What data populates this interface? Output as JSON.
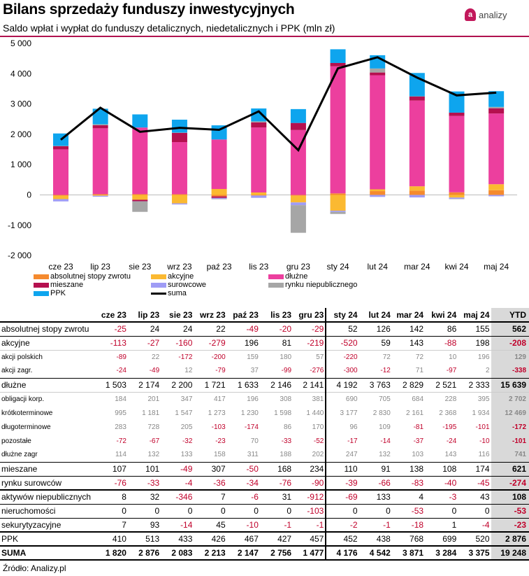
{
  "header": {
    "title": "Bilans sprzedaży funduszy inwestycyjnych",
    "subtitle": "Saldo wpłat i wypłat do funduszy detalicznych, niedetalicznych i PPK (mln zł)",
    "logo_text": "analizy",
    "logo_mark": "a"
  },
  "chart_data": {
    "type": "bar",
    "stacked": true,
    "categories": [
      "cze 23",
      "lip 23",
      "sie 23",
      "wrz 23",
      "paź 23",
      "lis 23",
      "gru 23",
      "sty 24",
      "lut 24",
      "mar 24",
      "kwi 24",
      "maj 24"
    ],
    "ylim": [
      -2000,
      5000
    ],
    "yticks": [
      5000,
      4000,
      3000,
      2000,
      1000,
      0,
      -1000,
      -2000
    ],
    "ytick_labels": [
      "5 000",
      "4 000",
      "3 000",
      "2 000",
      "1 000",
      "0",
      "-1 000",
      "-2 000"
    ],
    "series": [
      {
        "name": "absolutnej stopy zwrotu",
        "color": "#f58a2e",
        "values": [
          -25,
          24,
          24,
          22,
          -49,
          -20,
          -29,
          52,
          126,
          142,
          86,
          155
        ]
      },
      {
        "name": "akcyjne",
        "color": "#fbb931",
        "values": [
          -113,
          -27,
          -160,
          -279,
          196,
          81,
          -219,
          -520,
          59,
          143,
          -88,
          198
        ]
      },
      {
        "name": "dłużne",
        "color": "#ec3f9e",
        "values": [
          1503,
          2174,
          2200,
          1721,
          1633,
          2146,
          2141,
          4192,
          3763,
          2829,
          2521,
          2333
        ]
      },
      {
        "name": "mieszane",
        "color": "#b5104f",
        "values": [
          107,
          101,
          -49,
          307,
          -50,
          168,
          234,
          110,
          91,
          138,
          108,
          174
        ]
      },
      {
        "name": "surowcowe",
        "color": "#9f9cf5",
        "values": [
          -76,
          -33,
          -4,
          -36,
          -34,
          -76,
          -90,
          -39,
          -66,
          -83,
          -40,
          -45
        ]
      },
      {
        "name": "rynku niepublicznego",
        "color": "#a6a6a6",
        "values": [
          8,
          32,
          -346,
          7,
          -6,
          31,
          -912,
          -69,
          133,
          4,
          -3,
          43
        ]
      },
      {
        "name": "PPK",
        "color": "#0ea5ee",
        "values": [
          410,
          513,
          433,
          426,
          467,
          427,
          457,
          452,
          438,
          768,
          699,
          520
        ]
      }
    ],
    "line": {
      "name": "suma",
      "color": "#000000",
      "values": [
        1820,
        2876,
        2083,
        2213,
        2147,
        2756,
        1477,
        4176,
        4542,
        3871,
        3284,
        3375
      ]
    },
    "legend_placement": "bottom"
  },
  "table": {
    "headers": [
      "cze 23",
      "lip 23",
      "sie 23",
      "wrz 23",
      "paź 23",
      "lis 23",
      "gru 23",
      "sty 24",
      "lut 24",
      "mar 24",
      "kwi 24",
      "maj 24",
      "YTD"
    ],
    "rows": [
      {
        "label": "absolutnej stopy zwrotu",
        "type": "main",
        "border": "thin",
        "values": [
          "-25",
          "24",
          "24",
          "22",
          "-49",
          "-20",
          "-29",
          "52",
          "126",
          "142",
          "86",
          "155",
          "562"
        ]
      },
      {
        "label": "akcyjne",
        "type": "main",
        "border": "light",
        "values": [
          "-113",
          "-27",
          "-160",
          "-279",
          "196",
          "81",
          "-219",
          "-520",
          "59",
          "143",
          "-88",
          "198",
          "-208"
        ]
      },
      {
        "label": "akcji polskich",
        "type": "sub",
        "border": "",
        "values": [
          "-89",
          "22",
          "-172",
          "-200",
          "159",
          "180",
          "57",
          "-220",
          "72",
          "72",
          "10",
          "196",
          "129"
        ]
      },
      {
        "label": "akcji zagr.",
        "type": "sub",
        "border": "thin",
        "values": [
          "-24",
          "-49",
          "12",
          "-79",
          "37",
          "-99",
          "-276",
          "-300",
          "-12",
          "71",
          "-97",
          "2",
          "-338"
        ]
      },
      {
        "label": "dłużne",
        "type": "main",
        "border": "light",
        "values": [
          "1 503",
          "2 174",
          "2 200",
          "1 721",
          "1 633",
          "2 146",
          "2 141",
          "4 192",
          "3 763",
          "2 829",
          "2 521",
          "2 333",
          "15 639"
        ]
      },
      {
        "label": "obligacji korp.",
        "type": "sub",
        "border": "",
        "values": [
          "184",
          "201",
          "347",
          "417",
          "196",
          "308",
          "381",
          "690",
          "705",
          "684",
          "228",
          "395",
          "2 702"
        ]
      },
      {
        "label": "krótkoterminowe",
        "type": "sub",
        "border": "",
        "values": [
          "995",
          "1 181",
          "1 547",
          "1 273",
          "1 230",
          "1 598",
          "1 440",
          "3 177",
          "2 830",
          "2 161",
          "2 368",
          "1 934",
          "12 469"
        ]
      },
      {
        "label": "długoterminowe",
        "type": "sub",
        "border": "",
        "values": [
          "283",
          "728",
          "205",
          "-103",
          "-174",
          "86",
          "170",
          "96",
          "109",
          "-81",
          "-195",
          "-101",
          "-172"
        ]
      },
      {
        "label": "pozostałe",
        "type": "sub",
        "border": "",
        "values": [
          "-72",
          "-67",
          "-32",
          "-23",
          "70",
          "-33",
          "-52",
          "-17",
          "-14",
          "-37",
          "-24",
          "-10",
          "-101"
        ]
      },
      {
        "label": "dłużne zagr",
        "type": "sub",
        "border": "thin",
        "values": [
          "114",
          "132",
          "133",
          "158",
          "311",
          "188",
          "202",
          "247",
          "132",
          "103",
          "143",
          "116",
          "741"
        ]
      },
      {
        "label": "mieszane",
        "type": "main",
        "border": "thin",
        "values": [
          "107",
          "101",
          "-49",
          "307",
          "-50",
          "168",
          "234",
          "110",
          "91",
          "138",
          "108",
          "174",
          "621"
        ]
      },
      {
        "label": "rynku surowców",
        "type": "main",
        "border": "thick",
        "values": [
          "-76",
          "-33",
          "-4",
          "-36",
          "-34",
          "-76",
          "-90",
          "-39",
          "-66",
          "-83",
          "-40",
          "-45",
          "-274"
        ]
      },
      {
        "label": "aktywów niepublicznych",
        "type": "main",
        "border": "thin",
        "values": [
          "8",
          "32",
          "-346",
          "7",
          "-6",
          "31",
          "-912",
          "-69",
          "133",
          "4",
          "-3",
          "43",
          "108"
        ]
      },
      {
        "label": "nieruchomości",
        "type": "main",
        "border": "thin",
        "values": [
          "0",
          "0",
          "0",
          "0",
          "0",
          "0",
          "-103",
          "0",
          "0",
          "-53",
          "0",
          "0",
          "-53"
        ]
      },
      {
        "label": "sekurytyzacyjne",
        "type": "main",
        "border": "thick",
        "values": [
          "7",
          "93",
          "-14",
          "45",
          "-10",
          "-1",
          "-1",
          "-2",
          "-1",
          "-18",
          "1",
          "-4",
          "-23"
        ]
      },
      {
        "label": "PPK",
        "type": "main",
        "border": "thick",
        "values": [
          "410",
          "513",
          "433",
          "426",
          "467",
          "427",
          "457",
          "452",
          "438",
          "768",
          "699",
          "520",
          "2 876"
        ]
      },
      {
        "label": "SUMA",
        "type": "suma",
        "border": "thick",
        "values": [
          "1 820",
          "2 876",
          "2 083",
          "2 213",
          "2 147",
          "2 756",
          "1 477",
          "4 176",
          "4 542",
          "3 871",
          "3 284",
          "3 375",
          "19 248"
        ]
      }
    ]
  },
  "source": "Źródło: Analizy.pl"
}
